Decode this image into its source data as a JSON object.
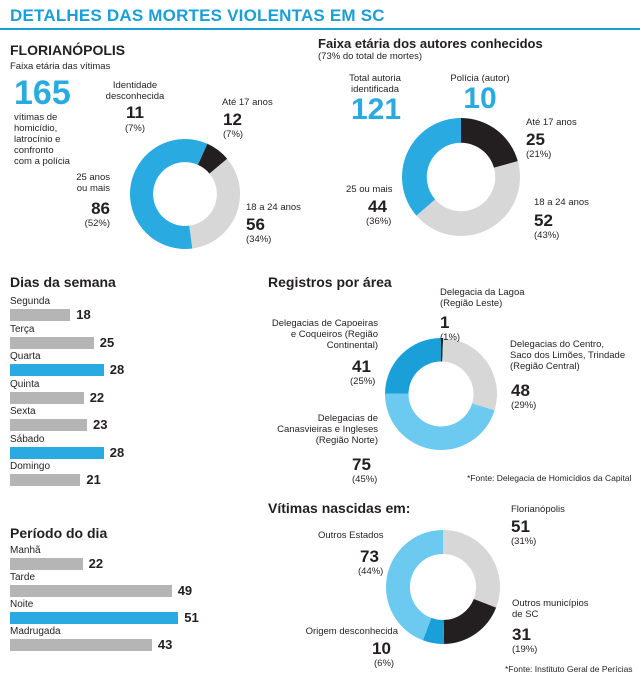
{
  "header": {
    "title": "DETALHES DAS MORTES VIOLENTAS EM SC"
  },
  "colors": {
    "blue": "#29abe2",
    "dark": "#231f20",
    "gray": "#d7d7d7",
    "bar_gray": "#b5b5b5"
  },
  "victims": {
    "title": "FLORIANÓPOLIS",
    "subtitle": "Faixa etária das vítimas",
    "total": "165",
    "total_desc": [
      "vítimas de",
      "homicídio,",
      "latrocínio e",
      "confronto",
      "com a polícia"
    ]
  },
  "authors": {
    "title": "Faixa etária dos autores conhecidos",
    "subtitle": "(73% do total de mortes)",
    "total_label": [
      "Total autoria",
      "identificada"
    ],
    "total": "121",
    "police_label": "Polícia (autor)",
    "police": "10"
  },
  "weekdays": {
    "title": "Dias da semana"
  },
  "period": {
    "title": "Período do dia"
  },
  "regions": {
    "title": "Registros por área",
    "source": "*Fonte: Delegacia de Homicídios da Capital"
  },
  "birthplace": {
    "title": "Vítimas nascidas em:",
    "source": "*Fonte: Instituto Geral de Perícias"
  },
  "chart_data": [
    {
      "type": "pie",
      "title": "Faixa etária das vítimas",
      "slices": [
        {
          "label": "Identidade desconhecida",
          "value": 11,
          "pct": "(7%)",
          "color": "#29abe2"
        },
        {
          "label": "Até 17 anos",
          "value": 12,
          "pct": "(7%)",
          "color": "#231f20"
        },
        {
          "label": "18 a 24 anos",
          "value": 56,
          "pct": "(34%)",
          "color": "#d7d7d7"
        },
        {
          "label": "25 anos ou mais",
          "value": 86,
          "pct": "(52%)",
          "color": "#29abe2"
        }
      ]
    },
    {
      "type": "pie",
      "title": "Faixa etária dos autores conhecidos",
      "slices": [
        {
          "label": "Até 17 anos",
          "value": 25,
          "pct": "(21%)",
          "color": "#231f20"
        },
        {
          "label": "18 a 24 anos",
          "value": 52,
          "pct": "(43%)",
          "color": "#d7d7d7"
        },
        {
          "label": "25 ou mais",
          "value": 44,
          "pct": "(36%)",
          "color": "#29abe2"
        }
      ]
    },
    {
      "type": "bar",
      "title": "Dias da semana",
      "categories": [
        "Segunda",
        "Terça",
        "Quarta",
        "Quinta",
        "Sexta",
        "Sábado",
        "Domingo"
      ],
      "values": [
        18,
        25,
        28,
        22,
        23,
        28,
        21
      ],
      "highlight": [
        false,
        false,
        true,
        false,
        false,
        true,
        false
      ]
    },
    {
      "type": "bar",
      "title": "Período do dia",
      "categories": [
        "Manhã",
        "Tarde",
        "Noite",
        "Madrugada"
      ],
      "values": [
        22,
        49,
        51,
        43
      ],
      "highlight": [
        false,
        false,
        true,
        false
      ]
    },
    {
      "type": "pie",
      "title": "Registros por área",
      "slices": [
        {
          "label": "Delegacia da Lagoa (Região Leste)",
          "value": 1,
          "pct": "(1%)",
          "color": "#231f20"
        },
        {
          "label": "Delegacias do Centro, Saco dos Limões, Trindade (Região Central)",
          "value": 48,
          "pct": "(29%)",
          "color": "#d7d7d7"
        },
        {
          "label": "Delegacias de Canasvieiras e Ingleses (Região Norte)",
          "value": 75,
          "pct": "(45%)",
          "color": "#6cc9ef"
        },
        {
          "label": "Delegacias de Capoeiras e Coqueiros (Região Continental)",
          "value": 41,
          "pct": "(25%)",
          "color": "#1a9fd9"
        }
      ]
    },
    {
      "type": "pie",
      "title": "Vítimas nascidas em:",
      "slices": [
        {
          "label": "Florianópolis",
          "value": 51,
          "pct": "(31%)",
          "color": "#d7d7d7"
        },
        {
          "label": "Outros municípios de SC",
          "value": 31,
          "pct": "(19%)",
          "color": "#231f20"
        },
        {
          "label": "Origem desconhecida",
          "value": 10,
          "pct": "(6%)",
          "color": "#1a9fd9"
        },
        {
          "label": "Outros Estados",
          "value": 73,
          "pct": "(44%)",
          "color": "#6cc9ef"
        }
      ]
    }
  ]
}
